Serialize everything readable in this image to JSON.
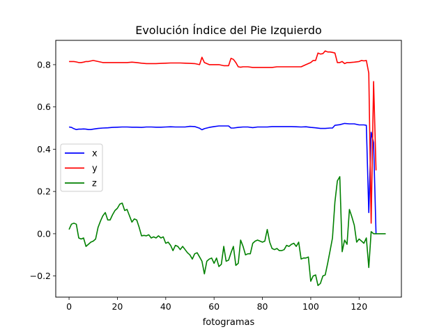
{
  "chart_data": {
    "type": "line",
    "title": "Evolución Índice del Pie Izquierdo",
    "xlabel": "fotogramas",
    "ylabel": "",
    "xlim": [
      -5.5,
      137.5
    ],
    "ylim": [
      -0.3,
      0.915
    ],
    "xticks": [
      0,
      20,
      40,
      60,
      80,
      100,
      120
    ],
    "yticks": [
      -0.2,
      0.0,
      0.2,
      0.4,
      0.6,
      0.8
    ],
    "ytick_labels": [
      "−0.2",
      "0.0",
      "0.2",
      "0.4",
      "0.6",
      "0.8"
    ],
    "grid": false,
    "legend_position": "center-left",
    "series": [
      {
        "name": "x",
        "color": "#0000ff",
        "x": [
          0,
          1,
          2,
          3,
          4,
          5,
          6,
          7,
          8,
          9,
          10,
          12,
          14,
          16,
          18,
          20,
          22,
          24,
          26,
          28,
          30,
          32,
          34,
          36,
          38,
          40,
          42,
          44,
          46,
          48,
          50,
          52,
          54,
          55,
          56,
          58,
          60,
          62,
          64,
          66,
          67,
          68,
          70,
          72,
          74,
          76,
          78,
          80,
          82,
          84,
          86,
          88,
          90,
          92,
          94,
          96,
          98,
          100,
          102,
          104,
          106,
          108,
          109,
          110,
          112,
          114,
          116,
          118,
          120,
          122,
          123,
          124,
          125,
          126,
          127
        ],
        "y": [
          0.505,
          0.503,
          0.497,
          0.493,
          0.495,
          0.495,
          0.496,
          0.495,
          0.493,
          0.493,
          0.495,
          0.498,
          0.5,
          0.501,
          0.503,
          0.504,
          0.505,
          0.505,
          0.504,
          0.504,
          0.503,
          0.505,
          0.505,
          0.504,
          0.504,
          0.505,
          0.506,
          0.505,
          0.505,
          0.505,
          0.508,
          0.507,
          0.499,
          0.492,
          0.497,
          0.503,
          0.507,
          0.51,
          0.51,
          0.51,
          0.5,
          0.5,
          0.503,
          0.505,
          0.505,
          0.502,
          0.505,
          0.505,
          0.505,
          0.507,
          0.507,
          0.507,
          0.507,
          0.507,
          0.506,
          0.505,
          0.506,
          0.503,
          0.501,
          0.498,
          0.498,
          0.5,
          0.5,
          0.513,
          0.516,
          0.522,
          0.52,
          0.52,
          0.515,
          0.515,
          0.513,
          0.1,
          0.48,
          0.43,
          0.0
        ]
      },
      {
        "name": "y",
        "color": "#ff0000",
        "x": [
          0,
          1,
          2,
          3,
          4,
          5,
          6,
          7,
          8,
          10,
          12,
          14,
          16,
          18,
          20,
          22,
          24,
          26,
          28,
          30,
          32,
          34,
          36,
          38,
          40,
          42,
          44,
          46,
          48,
          50,
          52,
          54,
          55,
          56,
          58,
          60,
          62,
          64,
          66,
          67,
          68,
          69,
          70,
          71,
          72,
          74,
          76,
          78,
          80,
          82,
          84,
          86,
          88,
          90,
          92,
          94,
          96,
          98,
          100,
          101,
          102,
          103,
          104,
          105,
          106,
          107,
          108,
          109,
          110,
          111,
          112,
          113,
          114,
          115,
          116,
          118,
          120,
          121,
          122,
          123,
          124,
          125,
          126,
          127
        ],
        "y": [
          0.815,
          0.815,
          0.815,
          0.813,
          0.81,
          0.81,
          0.812,
          0.815,
          0.815,
          0.82,
          0.815,
          0.81,
          0.81,
          0.81,
          0.81,
          0.81,
          0.81,
          0.812,
          0.81,
          0.807,
          0.805,
          0.805,
          0.805,
          0.806,
          0.807,
          0.808,
          0.808,
          0.808,
          0.807,
          0.806,
          0.805,
          0.8,
          0.835,
          0.81,
          0.8,
          0.8,
          0.8,
          0.795,
          0.795,
          0.83,
          0.825,
          0.81,
          0.79,
          0.788,
          0.79,
          0.79,
          0.787,
          0.787,
          0.787,
          0.787,
          0.787,
          0.79,
          0.79,
          0.79,
          0.79,
          0.79,
          0.79,
          0.8,
          0.81,
          0.82,
          0.82,
          0.855,
          0.85,
          0.852,
          0.865,
          0.86,
          0.86,
          0.858,
          0.855,
          0.81,
          0.81,
          0.815,
          0.805,
          0.81,
          0.81,
          0.812,
          0.815,
          0.82,
          0.818,
          0.82,
          0.76,
          0.05,
          0.72,
          0.3
        ]
      },
      {
        "name": "z",
        "color": "#008000",
        "x": [
          0,
          1,
          2,
          3,
          4,
          5,
          6,
          7,
          8,
          9,
          10,
          11,
          12,
          13,
          14,
          15,
          16,
          17,
          18,
          19,
          20,
          21,
          22,
          23,
          24,
          25,
          26,
          27,
          28,
          29,
          30,
          31,
          32,
          33,
          34,
          35,
          36,
          37,
          38,
          39,
          40,
          41,
          42,
          43,
          44,
          45,
          46,
          47,
          48,
          49,
          50,
          51,
          52,
          53,
          54,
          55,
          56,
          57,
          58,
          59,
          60,
          61,
          62,
          63,
          64,
          65,
          66,
          67,
          68,
          69,
          70,
          71,
          72,
          73,
          74,
          75,
          76,
          77,
          78,
          79,
          80,
          81,
          82,
          83,
          84,
          85,
          86,
          87,
          88,
          89,
          90,
          91,
          92,
          93,
          94,
          95,
          96,
          97,
          98,
          99,
          100,
          101,
          102,
          103,
          104,
          105,
          106,
          107,
          108,
          109,
          110,
          111,
          112,
          113,
          114,
          115,
          116,
          117,
          118,
          119,
          120,
          121,
          122,
          123,
          124,
          125,
          126,
          127,
          128,
          129,
          130,
          131
        ],
        "y": [
          0.02,
          0.045,
          0.05,
          0.045,
          -0.02,
          -0.025,
          -0.02,
          -0.06,
          -0.05,
          -0.04,
          -0.035,
          -0.025,
          0.03,
          0.06,
          0.085,
          0.1,
          0.065,
          0.065,
          0.09,
          0.11,
          0.12,
          0.14,
          0.145,
          0.11,
          0.115,
          0.085,
          0.055,
          0.07,
          0.065,
          0.03,
          -0.01,
          -0.008,
          -0.01,
          -0.005,
          -0.02,
          -0.015,
          -0.02,
          -0.01,
          -0.02,
          -0.015,
          -0.045,
          -0.04,
          -0.055,
          -0.08,
          -0.055,
          -0.06,
          -0.075,
          -0.06,
          -0.075,
          -0.09,
          -0.1,
          -0.12,
          -0.095,
          -0.09,
          -0.11,
          -0.13,
          -0.19,
          -0.13,
          -0.12,
          -0.115,
          -0.14,
          -0.115,
          -0.155,
          -0.145,
          -0.06,
          -0.13,
          -0.125,
          -0.09,
          -0.06,
          -0.15,
          -0.14,
          -0.03,
          -0.06,
          -0.1,
          -0.095,
          -0.095,
          -0.045,
          -0.035,
          -0.03,
          -0.035,
          -0.04,
          -0.035,
          0.02,
          -0.04,
          -0.07,
          -0.075,
          -0.07,
          -0.08,
          -0.08,
          -0.075,
          -0.055,
          -0.06,
          -0.05,
          -0.045,
          -0.06,
          -0.04,
          -0.12,
          -0.115,
          -0.115,
          -0.11,
          -0.225,
          -0.2,
          -0.195,
          -0.245,
          -0.235,
          -0.2,
          -0.195,
          -0.14,
          -0.08,
          -0.02,
          0.15,
          0.25,
          0.27,
          -0.085,
          -0.03,
          -0.05,
          0.115,
          0.08,
          0.04,
          -0.04,
          -0.025,
          -0.035,
          -0.045,
          -0.02,
          -0.16,
          0.01,
          0.0,
          0.0,
          0.0,
          0.0,
          0.0,
          0.0
        ]
      }
    ]
  }
}
